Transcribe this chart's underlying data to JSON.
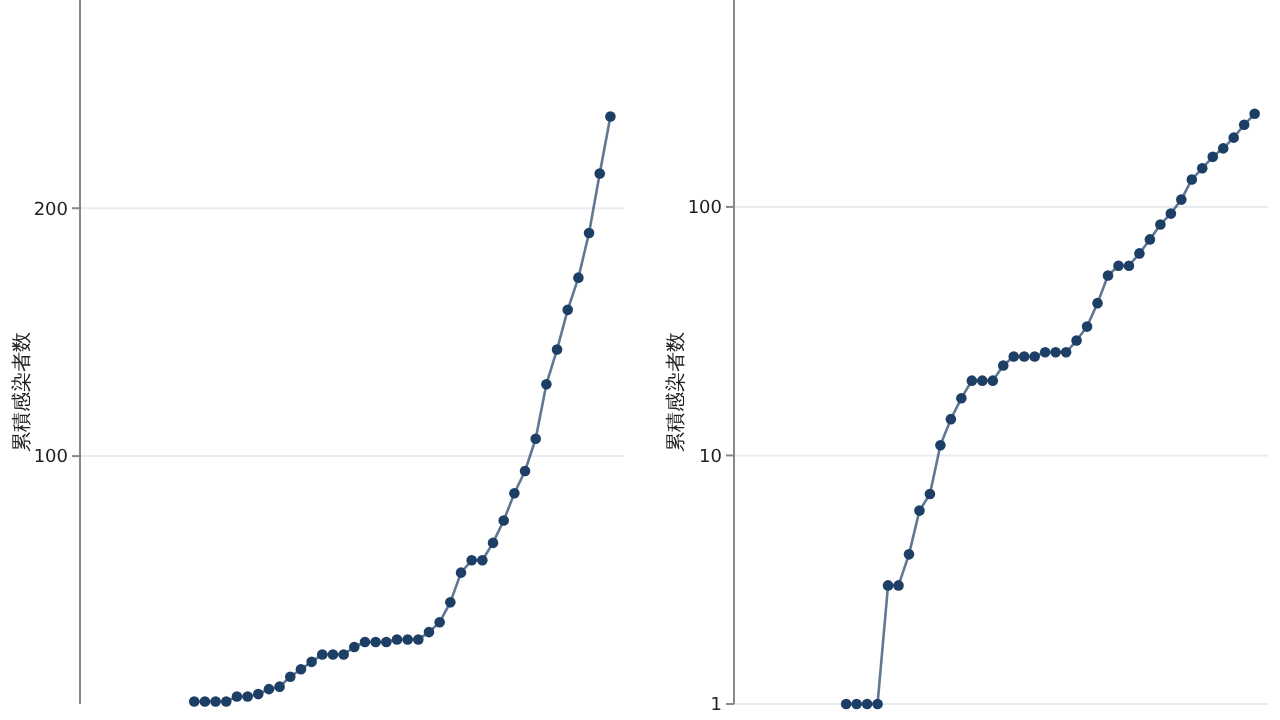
{
  "chart_data": [
    {
      "type": "line",
      "ylabel": "累積感染者数",
      "categories": [
        null,
        null,
        null,
        null,
        null,
        null,
        null,
        null,
        null,
        null,
        null,
        null,
        null,
        null,
        null,
        null,
        null,
        null,
        null,
        null,
        null,
        null,
        null,
        null,
        null,
        null,
        null,
        null,
        null,
        null,
        null,
        null,
        null,
        null,
        null,
        null,
        null,
        null,
        null,
        null
      ],
      "series": [
        {
          "color": "#1d3f66",
          "values": [
            1,
            1,
            1,
            1,
            3,
            3,
            4,
            6,
            7,
            11,
            14,
            17,
            20,
            20,
            20,
            23,
            25,
            25,
            25,
            26,
            26,
            26,
            29,
            33,
            41,
            53,
            58,
            58,
            65,
            74,
            85,
            94,
            107,
            129,
            143,
            159,
            172,
            190,
            214,
            237
          ]
        }
      ],
      "ylim": [
        0,
        284
      ],
      "yticks": [
        100,
        200
      ],
      "grid": "y",
      "marker": "circle",
      "tick_labels": "y"
    },
    {
      "type": "line",
      "ylabel": "累積感染者数",
      "categories": [
        null,
        null,
        null,
        null,
        null,
        null,
        null,
        null,
        null,
        null,
        null,
        null,
        null,
        null,
        null,
        null,
        null,
        null,
        null,
        null,
        null,
        null,
        null,
        null,
        null,
        null,
        null,
        null,
        null,
        null,
        null,
        null,
        null,
        null,
        null,
        null,
        null,
        null,
        null,
        null
      ],
      "series": [
        {
          "color": "#1d3f66",
          "values": [
            1,
            1,
            1,
            1,
            3,
            3,
            4,
            6,
            7,
            11,
            14,
            17,
            20,
            20,
            20,
            23,
            25,
            25,
            25,
            26,
            26,
            26,
            29,
            33,
            41,
            53,
            58,
            58,
            65,
            74,
            85,
            94,
            107,
            129,
            143,
            159,
            172,
            190,
            214,
            237
          ]
        }
      ],
      "ylim": [
        1,
        680
      ],
      "yticks": [
        1,
        10,
        100
      ],
      "log": true,
      "grid": "y",
      "marker": "circle",
      "tick_labels": "y"
    }
  ]
}
